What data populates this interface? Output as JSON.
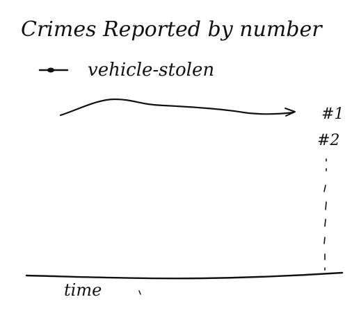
{
  "title": "Crimes Reported by number",
  "legend": {
    "entry": "vehicle-stolen",
    "marker": "circle-on-line"
  },
  "rank_labels": [
    "#1",
    "#2"
  ],
  "x_axis_label": "time",
  "colors": {
    "ink": "#111111",
    "paper": "#ffffff"
  }
}
